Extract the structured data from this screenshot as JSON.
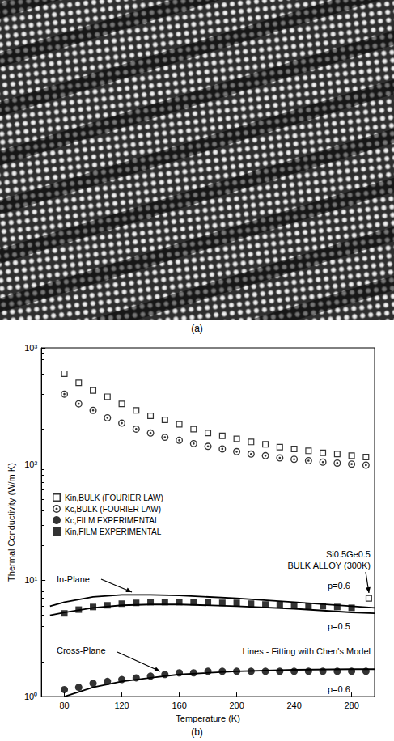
{
  "panel_labels": [
    "(a)",
    "(b)"
  ],
  "chart_data": {
    "type": "scatter",
    "x_label": "Temperature (K)",
    "y_label": "Thermal Conductivity (W/m K)",
    "xlim": [
      64,
      296
    ],
    "xticks": [
      80,
      120,
      160,
      200,
      240,
      280
    ],
    "ylim": [
      1,
      1000
    ],
    "yticks": [
      {
        "value": 1,
        "label": "10⁰"
      },
      {
        "value": 10,
        "label": "10¹"
      },
      {
        "value": 100,
        "label": "10²"
      },
      {
        "value": 1000,
        "label": "10³"
      }
    ],
    "log": "y",
    "grid": false,
    "legend": "left",
    "color": "#000000",
    "series": [
      {
        "name": "Kin,BULK (FOURIER LAW)",
        "type": "scatter",
        "marker": "square-open",
        "x": [
          80,
          90,
          100,
          110,
          120,
          130,
          140,
          150,
          160,
          170,
          180,
          190,
          200,
          210,
          220,
          230,
          240,
          250,
          260,
          270,
          280,
          290
        ],
        "values": [
          600,
          500,
          430,
          380,
          330,
          290,
          260,
          240,
          220,
          200,
          185,
          175,
          165,
          155,
          148,
          140,
          135,
          130,
          125,
          122,
          118,
          115
        ]
      },
      {
        "name": "Kc,BULK (FOURIER LAW)",
        "type": "scatter",
        "marker": "circle-dot",
        "x": [
          80,
          90,
          100,
          110,
          120,
          130,
          140,
          150,
          160,
          170,
          180,
          190,
          200,
          210,
          220,
          230,
          240,
          250,
          260,
          270,
          280,
          290
        ],
        "values": [
          400,
          330,
          290,
          250,
          225,
          200,
          185,
          170,
          160,
          150,
          142,
          135,
          128,
          122,
          118,
          113,
          110,
          107,
          104,
          102,
          100,
          98
        ]
      },
      {
        "name": "Kc,FILM EXPERIMENTAL",
        "type": "scatter",
        "marker": "circle",
        "x": [
          80,
          90,
          100,
          110,
          120,
          130,
          140,
          150,
          160,
          170,
          180,
          190,
          200,
          210,
          220,
          230,
          240,
          250,
          260,
          270,
          280,
          290
        ],
        "values": [
          1.15,
          1.2,
          1.3,
          1.35,
          1.4,
          1.45,
          1.5,
          1.55,
          1.6,
          1.6,
          1.65,
          1.65,
          1.65,
          1.65,
          1.65,
          1.65,
          1.65,
          1.65,
          1.65,
          1.65,
          1.65,
          1.65
        ]
      },
      {
        "name": "Kin,FILM EXPERIMENTAL",
        "type": "scatter",
        "marker": "square",
        "x": [
          80,
          90,
          100,
          110,
          120,
          130,
          140,
          150,
          160,
          170,
          180,
          190,
          200,
          210,
          220,
          230,
          240,
          250,
          260,
          270,
          280
        ],
        "values": [
          5.2,
          5.6,
          5.9,
          6.1,
          6.3,
          6.4,
          6.5,
          6.5,
          6.5,
          6.5,
          6.5,
          6.4,
          6.4,
          6.3,
          6.2,
          6.2,
          6.1,
          6.0,
          6.0,
          5.9,
          5.8
        ]
      },
      {
        "type": "line",
        "marker": "none",
        "line_style": "solid",
        "x": [
          70,
          80,
          100,
          120,
          140,
          160,
          200,
          240,
          280,
          296
        ],
        "values": [
          6.0,
          6.5,
          7.2,
          7.5,
          7.5,
          7.4,
          7.0,
          6.5,
          6.0,
          5.8
        ]
      },
      {
        "type": "line",
        "marker": "none",
        "line_style": "solid",
        "x": [
          70,
          80,
          100,
          120,
          140,
          160,
          200,
          240,
          280,
          296
        ],
        "values": [
          5.0,
          5.3,
          5.8,
          6.1,
          6.2,
          6.2,
          6.0,
          5.7,
          5.3,
          5.2
        ]
      },
      {
        "type": "line",
        "marker": "none",
        "line_style": "solid",
        "x": [
          80,
          100,
          120,
          140,
          160,
          200,
          240,
          280,
          296
        ],
        "values": [
          1.0,
          1.2,
          1.35,
          1.45,
          1.55,
          1.65,
          1.7,
          1.72,
          1.72
        ]
      },
      {
        "type": "scatter",
        "marker": "square-open",
        "x": [
          292
        ],
        "values": [
          7
        ]
      }
    ],
    "annotations": [
      "In-Plane",
      "p=0.6",
      "p=0.5",
      "Cross-Plane",
      "p=0.6",
      "Lines - Fitting with Chen's Model",
      "Si0.5Ge0.5",
      "BULK ALLOY (300K)"
    ]
  }
}
